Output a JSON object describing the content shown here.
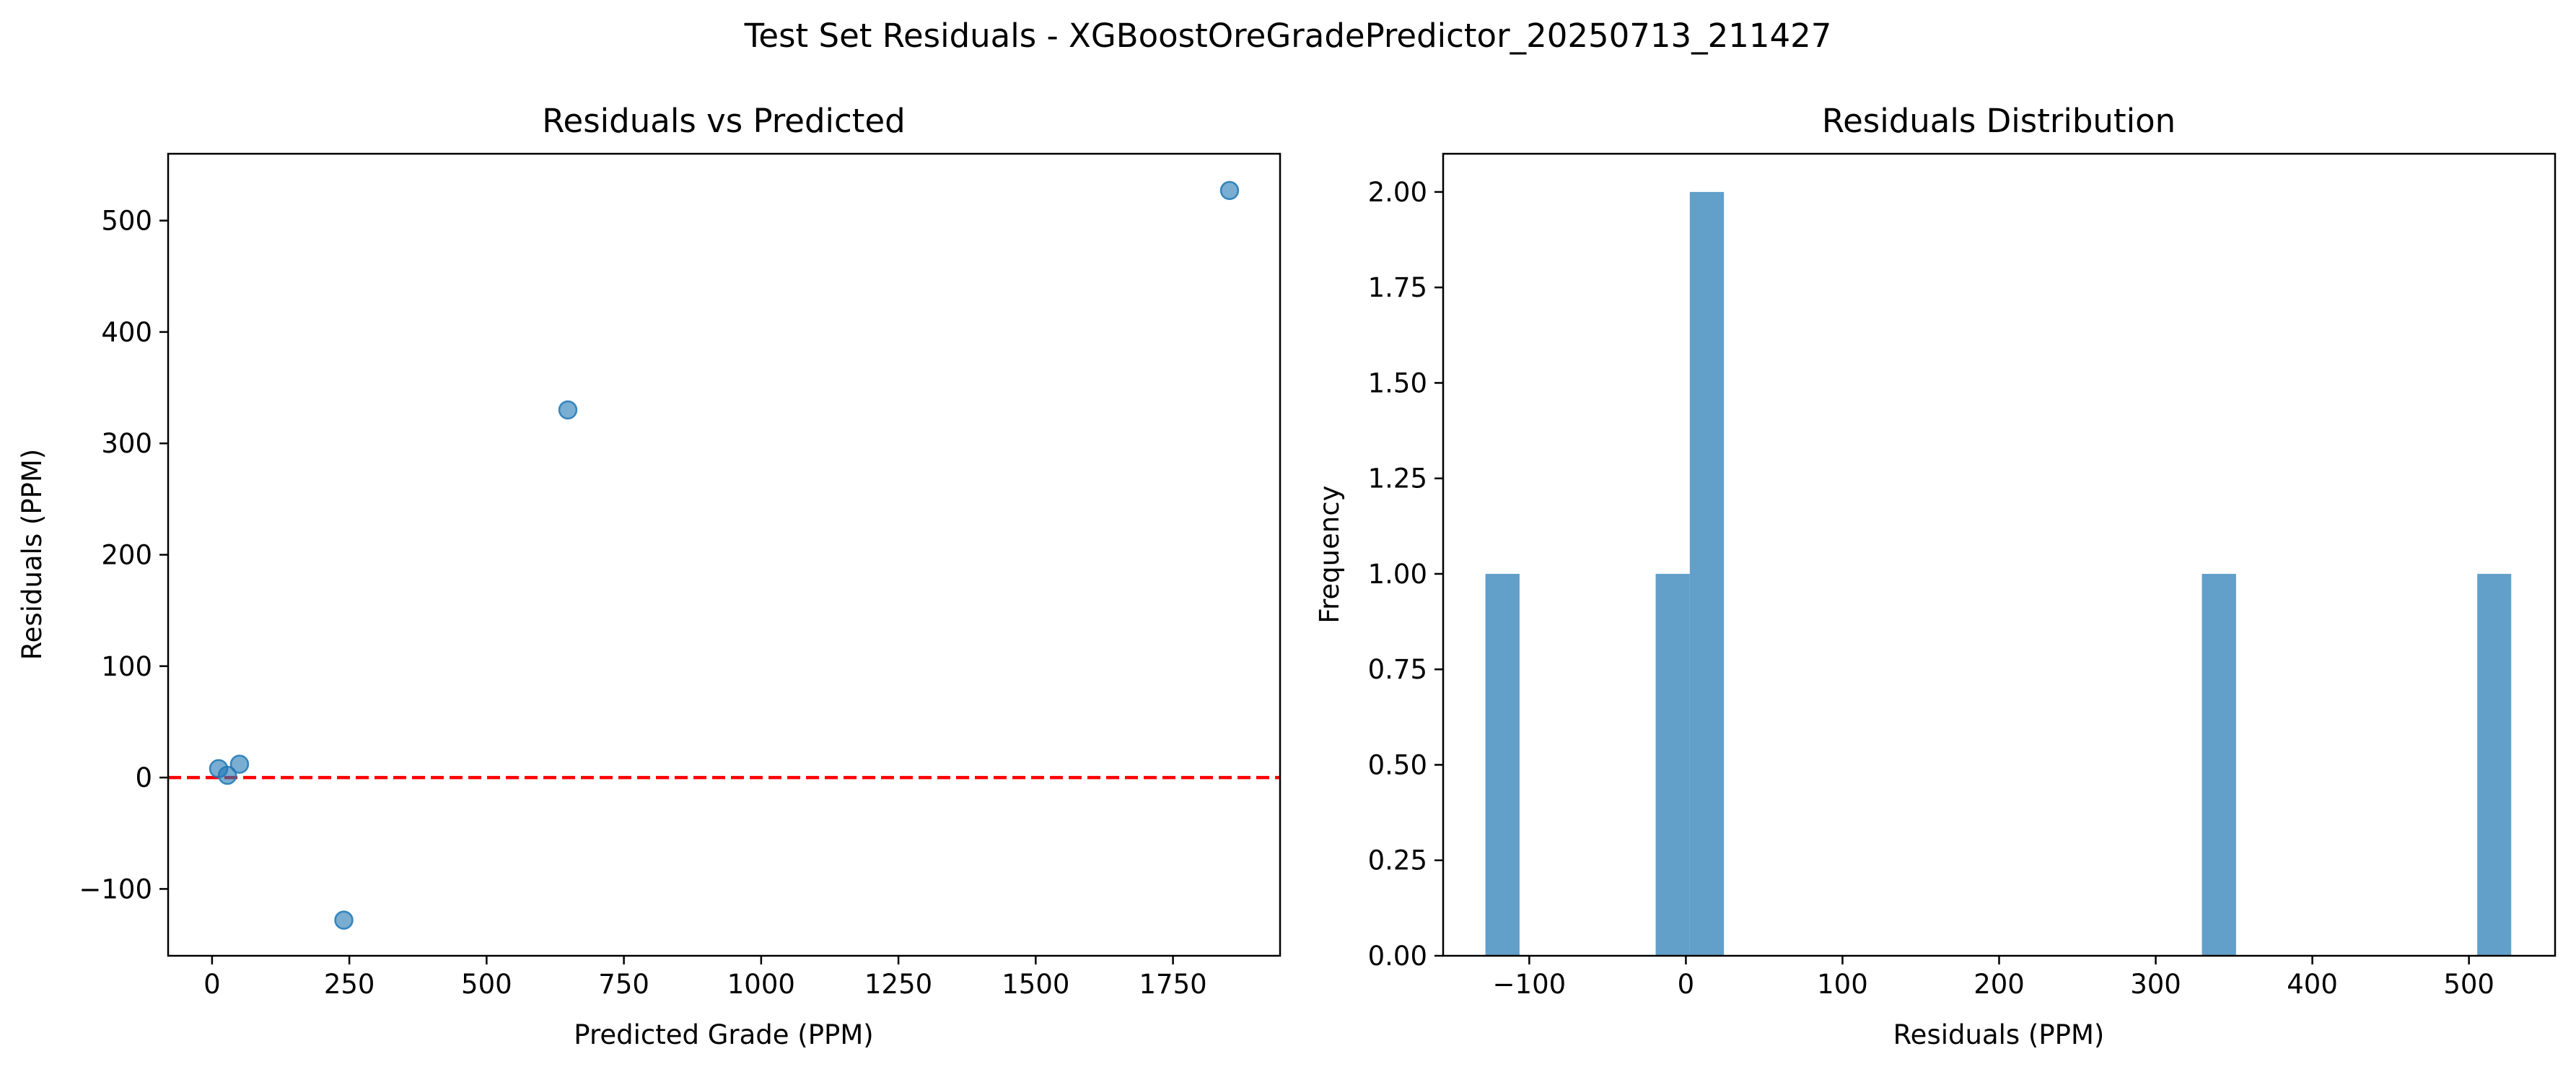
{
  "figure": {
    "suptitle": "Test Set Residuals - XGBoostOreGradePredictor_20250713_211427"
  },
  "chart_data": [
    {
      "type": "scatter",
      "title": "Residuals vs Predicted",
      "xlabel": "Predicted Grade (PPM)",
      "ylabel": "Residuals (PPM)",
      "xlim": [
        -80,
        1945
      ],
      "ylim": [
        -160,
        560
      ],
      "xticks": [
        0,
        250,
        500,
        750,
        1000,
        1250,
        1500,
        1750
      ],
      "xtick_labels": [
        "0",
        "250",
        "500",
        "750",
        "1000",
        "1250",
        "1500",
        "1750"
      ],
      "yticks": [
        -100,
        0,
        100,
        200,
        300,
        400,
        500
      ],
      "ytick_labels": [
        "−100",
        "0",
        "100",
        "200",
        "300",
        "400",
        "500"
      ],
      "grid": false,
      "marker_color": "#1f77b4",
      "marker_alpha": 0.6,
      "points": [
        {
          "x": 12,
          "y": 8
        },
        {
          "x": 28,
          "y": 2
        },
        {
          "x": 50,
          "y": 12
        },
        {
          "x": 240,
          "y": -128
        },
        {
          "x": 648,
          "y": 330
        },
        {
          "x": 1853,
          "y": 527
        }
      ],
      "reference_line": {
        "y": 0,
        "color": "#ff0000",
        "style": "dashed"
      }
    },
    {
      "type": "bar",
      "subtype": "histogram",
      "title": "Residuals Distribution",
      "xlabel": "Residuals (PPM)",
      "ylabel": "Frequency",
      "xlim": [
        -155,
        555
      ],
      "ylim": [
        0,
        2.1
      ],
      "xticks": [
        -100,
        0,
        100,
        200,
        300,
        400,
        500
      ],
      "xtick_labels": [
        "−100",
        "0",
        "100",
        "200",
        "300",
        "400",
        "500"
      ],
      "yticks": [
        0,
        0.25,
        0.5,
        0.75,
        1.0,
        1.25,
        1.5,
        1.75,
        2.0
      ],
      "ytick_labels": [
        "0.00",
        "0.25",
        "0.50",
        "0.75",
        "1.00",
        "1.25",
        "1.50",
        "1.75",
        "2.00"
      ],
      "grid": false,
      "bar_color": "#1f77b4",
      "bar_alpha": 0.7,
      "bins": [
        {
          "x0": -128,
          "x1": -106.2,
          "count": 1
        },
        {
          "x0": -19.3,
          "x1": 2.5,
          "count": 1
        },
        {
          "x0": 2.5,
          "x1": 24.3,
          "count": 2
        },
        {
          "x0": 329.5,
          "x1": 351.3,
          "count": 1
        },
        {
          "x0": 505.3,
          "x1": 527,
          "count": 1
        }
      ]
    }
  ]
}
